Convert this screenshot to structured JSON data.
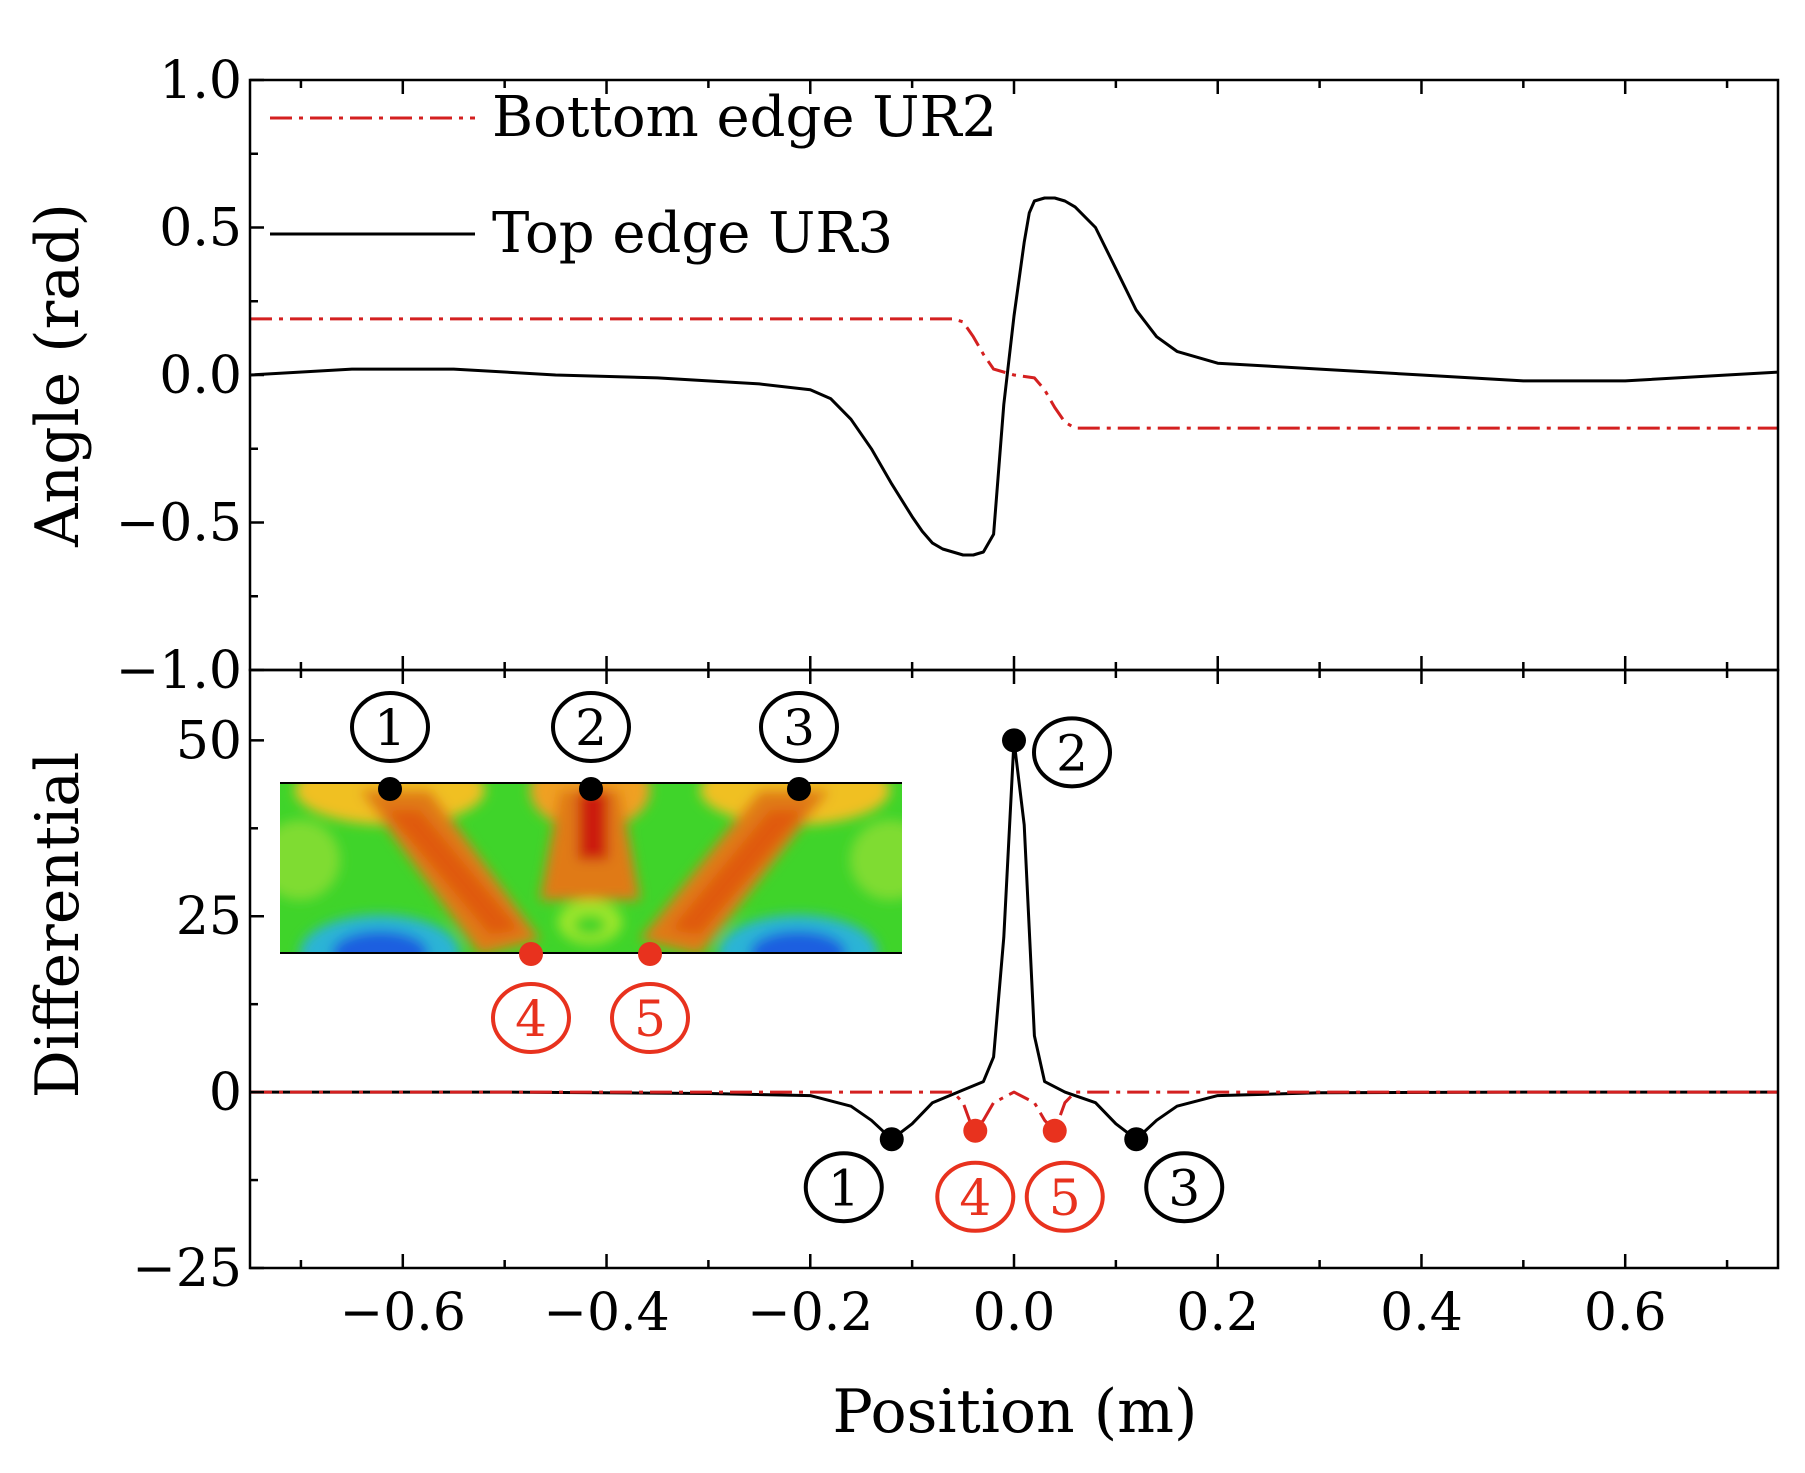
{
  "chart_data": [
    {
      "type": "line",
      "panel": "top",
      "ylabel": "Angle (rad)",
      "xlim": [
        -0.75,
        0.75
      ],
      "ylim": [
        -1.0,
        1.0
      ],
      "yticks": [
        "1.0",
        "0.5",
        "0.0",
        "−0.5",
        "−1.0"
      ],
      "ytick_values": [
        1.0,
        0.5,
        0.0,
        -0.5,
        -1.0
      ],
      "legend": {
        "placement": "top-left",
        "entries": [
          "Bottom edge UR2",
          "Top edge UR3"
        ]
      },
      "series": [
        {
          "name": "Bottom edge UR2",
          "style": "dash-dot",
          "color": "#d42020",
          "x": [
            -0.75,
            -0.06,
            -0.05,
            -0.04,
            -0.03,
            -0.02,
            0.0,
            0.02,
            0.03,
            0.04,
            0.05,
            0.06,
            0.75
          ],
          "y": [
            0.19,
            0.19,
            0.18,
            0.13,
            0.07,
            0.02,
            0.0,
            -0.01,
            -0.05,
            -0.11,
            -0.16,
            -0.18,
            -0.18
          ]
        },
        {
          "name": "Top edge UR3",
          "style": "solid",
          "color": "#000000",
          "x": [
            -0.75,
            -0.65,
            -0.55,
            -0.45,
            -0.35,
            -0.25,
            -0.2,
            -0.18,
            -0.16,
            -0.14,
            -0.12,
            -0.1,
            -0.09,
            -0.08,
            -0.07,
            -0.06,
            -0.05,
            -0.04,
            -0.03,
            -0.02,
            -0.01,
            0.0,
            0.01,
            0.015,
            0.02,
            0.03,
            0.04,
            0.05,
            0.06,
            0.08,
            0.1,
            0.12,
            0.14,
            0.16,
            0.2,
            0.3,
            0.4,
            0.5,
            0.6,
            0.7,
            0.75
          ],
          "y": [
            0.0,
            0.02,
            0.02,
            0.0,
            -0.01,
            -0.03,
            -0.05,
            -0.08,
            -0.15,
            -0.25,
            -0.37,
            -0.48,
            -0.53,
            -0.57,
            -0.59,
            -0.6,
            -0.61,
            -0.61,
            -0.6,
            -0.54,
            -0.1,
            0.2,
            0.45,
            0.55,
            0.59,
            0.6,
            0.6,
            0.59,
            0.57,
            0.5,
            0.36,
            0.22,
            0.13,
            0.08,
            0.04,
            0.02,
            0.0,
            -0.02,
            -0.02,
            0.0,
            0.01
          ]
        }
      ]
    },
    {
      "type": "line",
      "panel": "bottom",
      "ylabel": "Differential",
      "xlabel": "Position (m)",
      "xlim": [
        -0.75,
        0.75
      ],
      "ylim": [
        -25,
        60
      ],
      "yticks": [
        "50",
        "25",
        "0",
        "−25"
      ],
      "ytick_values": [
        50,
        25,
        0,
        -25
      ],
      "xticks": [
        "−0.6",
        "−0.4",
        "−0.2",
        "0.0",
        "0.2",
        "0.4",
        "0.6"
      ],
      "xtick_values": [
        -0.6,
        -0.4,
        -0.2,
        0.0,
        0.2,
        0.4,
        0.6
      ],
      "series": [
        {
          "name": "Top edge UR3 differential",
          "style": "solid",
          "color": "#000000",
          "x": [
            -0.75,
            -0.5,
            -0.3,
            -0.2,
            -0.16,
            -0.14,
            -0.12,
            -0.1,
            -0.08,
            -0.05,
            -0.03,
            -0.02,
            -0.01,
            0.0,
            0.01,
            0.02,
            0.03,
            0.05,
            0.08,
            0.1,
            0.12,
            0.14,
            0.16,
            0.2,
            0.3,
            0.5,
            0.75
          ],
          "y": [
            0.0,
            0.0,
            -0.2,
            -0.5,
            -2.0,
            -4.0,
            -6.7,
            -4.5,
            -1.5,
            0.3,
            1.5,
            5.0,
            22.0,
            50.0,
            38.0,
            8.0,
            1.5,
            0.0,
            -1.5,
            -4.5,
            -6.7,
            -4.0,
            -2.0,
            -0.5,
            -0.1,
            0.0,
            0.0
          ]
        },
        {
          "name": "Bottom edge UR2 differential",
          "style": "dash-dot",
          "color": "#d42020",
          "x": [
            -0.75,
            -0.06,
            -0.05,
            -0.04,
            -0.03,
            -0.02,
            0.0,
            0.02,
            0.03,
            0.04,
            0.05,
            0.06,
            0.75
          ],
          "y": [
            0.0,
            0.0,
            -1.5,
            -5.5,
            -4.0,
            -1.5,
            0.0,
            -1.5,
            -4.0,
            -5.5,
            -1.5,
            0.0,
            0.0
          ]
        }
      ],
      "markers": [
        {
          "label": "1",
          "x": -0.12,
          "y": -6.7,
          "color": "#000000"
        },
        {
          "label": "2",
          "x": 0.0,
          "y": 50.0,
          "color": "#000000"
        },
        {
          "label": "3",
          "x": 0.12,
          "y": -6.7,
          "color": "#000000"
        },
        {
          "label": "4",
          "x": -0.038,
          "y": -5.5,
          "color": "#e8321e"
        },
        {
          "label": "5",
          "x": 0.04,
          "y": -5.5,
          "color": "#e8321e"
        }
      ],
      "inset": {
        "description": "stress contour",
        "top_markers": [
          "1",
          "2",
          "3"
        ],
        "bottom_markers": [
          "4",
          "5"
        ]
      }
    }
  ]
}
